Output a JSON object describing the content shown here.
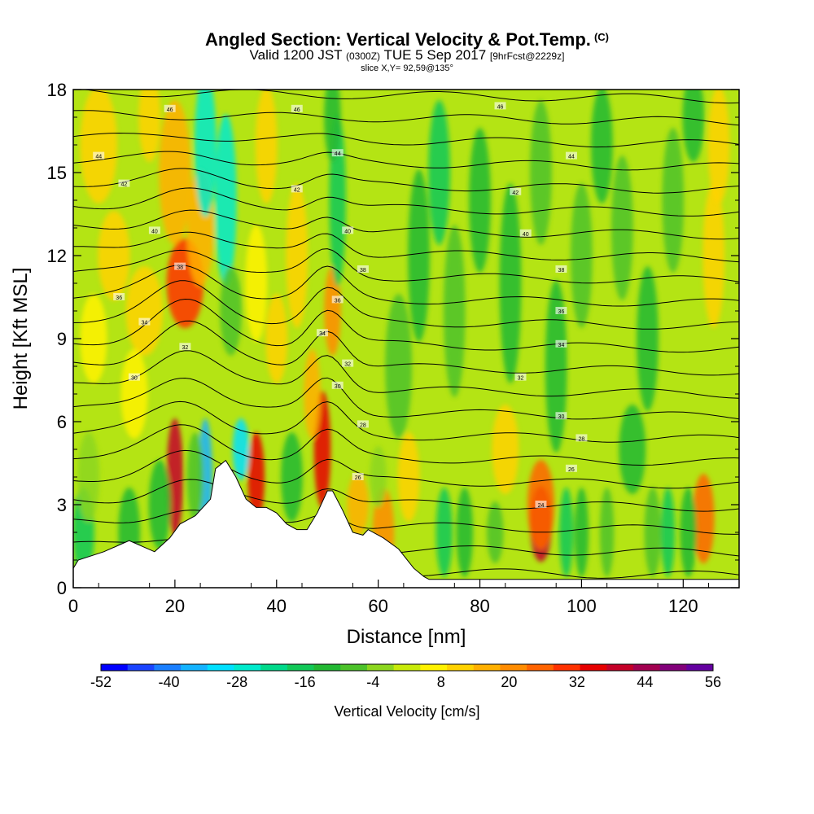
{
  "title": {
    "main": "Angled Section: Vertical Velocity & Pot.Temp.",
    "units": "(C)",
    "valid_prefix": "Valid 1200 JST",
    "valid_zulu": "(0300Z)",
    "valid_date": "TUE 5 Sep 2017",
    "forecast": "[9hrFcst@2229z]",
    "slice": "slice X,Y= 92,59@135°"
  },
  "chart_data": {
    "type": "heatmap",
    "title": "Angled Section: Vertical Velocity & Pot.Temp. (C)",
    "xlabel": "Distance [nm]",
    "ylabel": "Height [Kft MSL]",
    "xlim": [
      0,
      131
    ],
    "ylim": [
      0,
      18
    ],
    "x_ticks": [
      0,
      20,
      40,
      60,
      80,
      100,
      120
    ],
    "y_ticks": [
      0,
      3,
      6,
      9,
      12,
      15,
      18
    ],
    "colorbar": {
      "label": "Vertical Velocity [cm/s]",
      "tick_values": [
        -52,
        -40,
        -28,
        -16,
        -4,
        8,
        20,
        32,
        44,
        56
      ],
      "tick_labels": [
        "-52",
        "-40",
        "-28",
        "-16",
        "-4",
        "8",
        "20",
        "32",
        "44",
        "56"
      ],
      "colors": [
        "#0000ff",
        "#1a44ff",
        "#1a7fff",
        "#14b3ff",
        "#00e0ff",
        "#00eacc",
        "#00d98a",
        "#12c858",
        "#22b833",
        "#4cc22a",
        "#8cd61e",
        "#c8ea0a",
        "#fff200",
        "#ffd200",
        "#ffb000",
        "#ff8c00",
        "#ff6400",
        "#ff3200",
        "#e60000",
        "#c40028",
        "#a20050",
        "#82007a",
        "#6400a0"
      ]
    },
    "terrain_kft": [
      [
        0,
        0.7
      ],
      [
        1,
        1.0
      ],
      [
        6,
        1.3
      ],
      [
        11,
        1.7
      ],
      [
        16,
        1.3
      ],
      [
        19,
        1.8
      ],
      [
        21,
        2.3
      ],
      [
        24,
        2.6
      ],
      [
        27,
        3.2
      ],
      [
        28,
        4.3
      ],
      [
        30,
        4.6
      ],
      [
        32,
        4.0
      ],
      [
        34,
        3.2
      ],
      [
        36,
        2.9
      ],
      [
        38,
        2.9
      ],
      [
        40,
        2.7
      ],
      [
        42,
        2.3
      ],
      [
        44,
        2.1
      ],
      [
        46,
        2.1
      ],
      [
        48,
        2.7
      ],
      [
        50,
        3.5
      ],
      [
        51,
        3.5
      ],
      [
        53,
        2.8
      ],
      [
        55,
        2.0
      ],
      [
        57,
        1.9
      ],
      [
        58,
        2.1
      ],
      [
        61,
        1.8
      ],
      [
        64,
        1.4
      ],
      [
        67,
        0.7
      ],
      [
        69,
        0.4
      ],
      [
        70,
        0.3
      ],
      [
        131,
        0.3
      ]
    ],
    "theta_labels": [
      {
        "x": 19,
        "y": 17.3,
        "label": "46"
      },
      {
        "x": 44,
        "y": 17.3,
        "label": "46"
      },
      {
        "x": 84,
        "y": 17.4,
        "label": "46"
      },
      {
        "x": 5,
        "y": 15.6,
        "label": "44"
      },
      {
        "x": 52,
        "y": 15.7,
        "label": "44"
      },
      {
        "x": 98,
        "y": 15.6,
        "label": "44"
      },
      {
        "x": 10,
        "y": 14.6,
        "label": "42"
      },
      {
        "x": 44,
        "y": 14.4,
        "label": "42"
      },
      {
        "x": 87,
        "y": 14.3,
        "label": "42"
      },
      {
        "x": 16,
        "y": 12.9,
        "label": "40"
      },
      {
        "x": 54,
        "y": 12.9,
        "label": "40"
      },
      {
        "x": 89,
        "y": 12.8,
        "label": "40"
      },
      {
        "x": 21,
        "y": 11.6,
        "label": "38"
      },
      {
        "x": 57,
        "y": 11.5,
        "label": "38"
      },
      {
        "x": 96,
        "y": 11.5,
        "label": "38"
      },
      {
        "x": 9,
        "y": 10.5,
        "label": "36"
      },
      {
        "x": 52,
        "y": 10.4,
        "label": "36"
      },
      {
        "x": 96,
        "y": 10.0,
        "label": "36"
      },
      {
        "x": 14,
        "y": 9.6,
        "label": "34"
      },
      {
        "x": 49,
        "y": 9.2,
        "label": "34"
      },
      {
        "x": 96,
        "y": 8.8,
        "label": "34"
      },
      {
        "x": 22,
        "y": 8.7,
        "label": "32"
      },
      {
        "x": 54,
        "y": 8.1,
        "label": "32"
      },
      {
        "x": 88,
        "y": 7.6,
        "label": "32"
      },
      {
        "x": 12,
        "y": 7.6,
        "label": "30"
      },
      {
        "x": 52,
        "y": 7.3,
        "label": "30"
      },
      {
        "x": 96,
        "y": 6.2,
        "label": "30"
      },
      {
        "x": 57,
        "y": 5.9,
        "label": "28"
      },
      {
        "x": 100,
        "y": 5.4,
        "label": "28"
      },
      {
        "x": 56,
        "y": 4.0,
        "label": "26"
      },
      {
        "x": 98,
        "y": 4.3,
        "label": "26"
      },
      {
        "x": 92,
        "y": 3.0,
        "label": "24"
      }
    ]
  },
  "icons": {
    "terrain": "terrain-mask-white",
    "contours": "potential-temperature-isolines"
  }
}
